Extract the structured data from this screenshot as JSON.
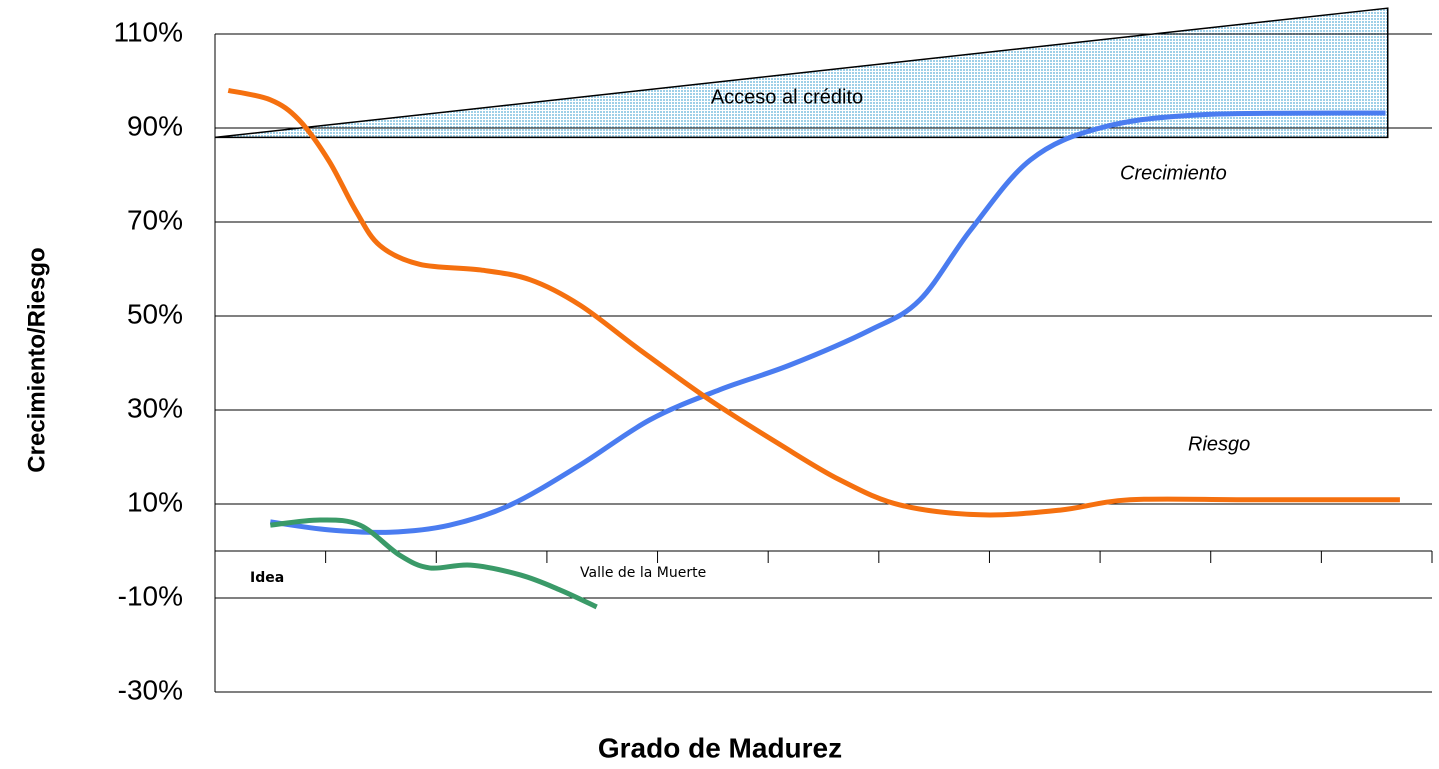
{
  "chart_data": {
    "type": "line",
    "x_label": "Grado de Madurez",
    "y_label": "Crecimiento/Riesgo",
    "categories": [
      "Idea",
      null,
      null,
      null,
      null,
      null,
      null,
      null,
      null,
      null,
      null
    ],
    "xlim": [
      0,
      11
    ],
    "ylim": [
      -30,
      110
    ],
    "yticks": [
      {
        "value": -30,
        "label": "-30%"
      },
      {
        "value": -10,
        "label": "-10%"
      },
      {
        "value": 10,
        "label": "10%"
      },
      {
        "value": 30,
        "label": "30%"
      },
      {
        "value": 50,
        "label": "50%"
      },
      {
        "value": 70,
        "label": "70%"
      },
      {
        "value": 90,
        "label": "90%"
      },
      {
        "value": 110,
        "label": "110%"
      }
    ],
    "grid": true,
    "annotation": "Valle de la Muerte",
    "band": {
      "label": "Acceso al crédito",
      "color": "#bfe3f2",
      "x": [
        0,
        10.6
      ],
      "lower": [
        88,
        88
      ],
      "upper": [
        88,
        115.5
      ]
    },
    "series": [
      {
        "name": "Crecimiento",
        "color": "#4a7cf0",
        "x": [
          0.5,
          1.03,
          1.58,
          2.12,
          2.67,
          3.3,
          3.93,
          4.56,
          5.2,
          5.92,
          6.37,
          6.83,
          7.37,
          8.0,
          8.9,
          10.58
        ],
        "values": [
          6.2,
          4.5,
          4,
          5.5,
          9.8,
          18.3,
          27.9,
          34.3,
          39.6,
          47,
          53.4,
          68.3,
          83.2,
          90,
          92.8,
          93.2
        ]
      },
      {
        "name": "Riesgo",
        "color": "#f5700f",
        "x": [
          0.12,
          0.5,
          0.76,
          1.03,
          1.27,
          1.49,
          1.85,
          2.4,
          2.85,
          3.3,
          3.84,
          4.48,
          5.11,
          5.65,
          6.19,
          6.92,
          7.64,
          8.27,
          9.36,
          10.71
        ],
        "values": [
          98,
          96,
          91.7,
          83,
          72.5,
          65,
          61,
          59.8,
          57.7,
          52.3,
          42.8,
          32,
          22.6,
          15.1,
          9.8,
          7.7,
          8.7,
          10.9,
          10.9,
          10.9
        ]
      },
      {
        "color": "#3a9a68",
        "x": [
          0.5,
          0.95,
          1.31,
          1.67,
          1.94,
          2.31,
          2.76,
          3.12,
          3.45
        ],
        "values": [
          5.5,
          6.6,
          5.5,
          -0.9,
          -3.6,
          -3,
          -5.1,
          -8.3,
          -11.9
        ]
      }
    ]
  }
}
